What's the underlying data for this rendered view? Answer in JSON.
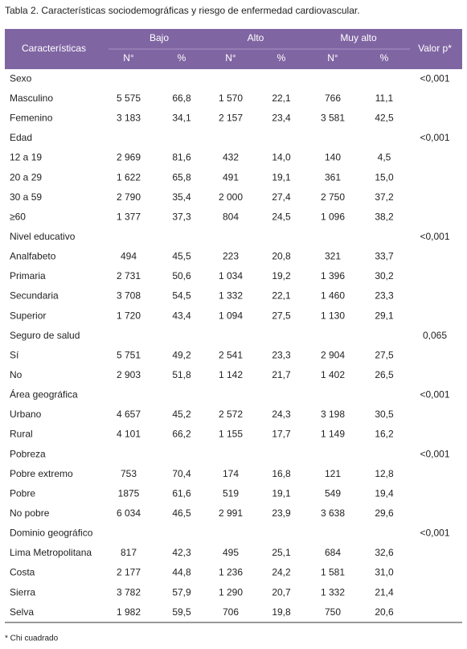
{
  "title": "Tabla 2. Características sociodemográficas y riesgo de enfermedad cardiovascular.",
  "table": {
    "header": {
      "characteristics": "Características",
      "groups": [
        "Bajo",
        "Alto",
        "Muy alto"
      ],
      "subcolumns": [
        "N°",
        "%",
        "N°",
        "%",
        "N°",
        "%"
      ],
      "p_value": "Valor p*"
    },
    "rows": [
      {
        "group": "Sexo",
        "p": "<0,001"
      },
      {
        "label": "Masculino",
        "cells": [
          "5 575",
          "66,8",
          "1 570",
          "22,1",
          "766",
          "11,1"
        ]
      },
      {
        "label": "Femenino",
        "cells": [
          "3 183",
          "34,1",
          "2 157",
          "23,4",
          "3 581",
          "42,5"
        ]
      },
      {
        "group": "Edad",
        "p": "<0,001"
      },
      {
        "label": "12 a 19",
        "cells": [
          "2 969",
          "81,6",
          "432",
          "14,0",
          "140",
          "4,5"
        ]
      },
      {
        "label": "20 a 29",
        "cells": [
          "1 622",
          "65,8",
          "491",
          "19,1",
          "361",
          "15,0"
        ]
      },
      {
        "label": "30 a 59",
        "cells": [
          "2 790",
          "35,4",
          "2 000",
          "27,4",
          "2 750",
          "37,2"
        ]
      },
      {
        "label": "≥60",
        "cells": [
          "1 377",
          "37,3",
          "804",
          "24,5",
          "1 096",
          "38,2"
        ]
      },
      {
        "group": "Nivel educativo",
        "p": "<0,001"
      },
      {
        "label": "Analfabeto",
        "cells": [
          "494",
          "45,5",
          "223",
          "20,8",
          "321",
          "33,7"
        ]
      },
      {
        "label": "Primaria",
        "cells": [
          "2 731",
          "50,6",
          "1 034",
          "19,2",
          "1 396",
          "30,2"
        ]
      },
      {
        "label": "Secundaria",
        "cells": [
          "3 708",
          "54,5",
          "1 332",
          "22,1",
          "1 460",
          "23,3"
        ]
      },
      {
        "label": "Superior",
        "cells": [
          "1 720",
          "43,4",
          "1 094",
          "27,5",
          "1 130",
          "29,1"
        ]
      },
      {
        "group": "Seguro de salud",
        "p": "0,065"
      },
      {
        "label": "Sí",
        "cells": [
          "5 751",
          "49,2",
          "2 541",
          "23,3",
          "2 904",
          "27,5"
        ]
      },
      {
        "label": "No",
        "cells": [
          "2 903",
          "51,8",
          "1 142",
          "21,7",
          "1 402",
          "26,5"
        ]
      },
      {
        "group": "Área geográfica",
        "p": "<0,001"
      },
      {
        "label": "Urbano",
        "cells": [
          "4 657",
          "45,2",
          "2 572",
          "24,3",
          "3 198",
          "30,5"
        ]
      },
      {
        "label": "Rural",
        "cells": [
          "4 101",
          "66,2",
          "1 155",
          "17,7",
          "1 149",
          "16,2"
        ]
      },
      {
        "group": "Pobreza",
        "p": "<0,001"
      },
      {
        "label": "Pobre extremo",
        "cells": [
          "753",
          "70,4",
          "174",
          "16,8",
          "121",
          "12,8"
        ]
      },
      {
        "label": "Pobre",
        "cells": [
          "1875",
          "61,6",
          "519",
          "19,1",
          "549",
          "19,4"
        ]
      },
      {
        "label": "No pobre",
        "cells": [
          "6 034",
          "46,5",
          "2 991",
          "23,9",
          "3 638",
          "29,6"
        ]
      },
      {
        "group": "Dominio geográfico",
        "p": "<0,001"
      },
      {
        "label": "Lima Metropolitana",
        "cells": [
          "817",
          "42,3",
          "495",
          "25,1",
          "684",
          "32,6"
        ]
      },
      {
        "label": "Costa",
        "cells": [
          "2 177",
          "44,8",
          "1 236",
          "24,2",
          "1 581",
          "31,0"
        ]
      },
      {
        "label": "Sierra",
        "cells": [
          "3 782",
          "57,9",
          "1 290",
          "20,7",
          "1 332",
          "21,4"
        ]
      },
      {
        "label": "Selva",
        "cells": [
          "1 982",
          "59,5",
          "706",
          "19,8",
          "750",
          "20,6"
        ]
      }
    ]
  },
  "footnote": "* Chi cuadrado"
}
